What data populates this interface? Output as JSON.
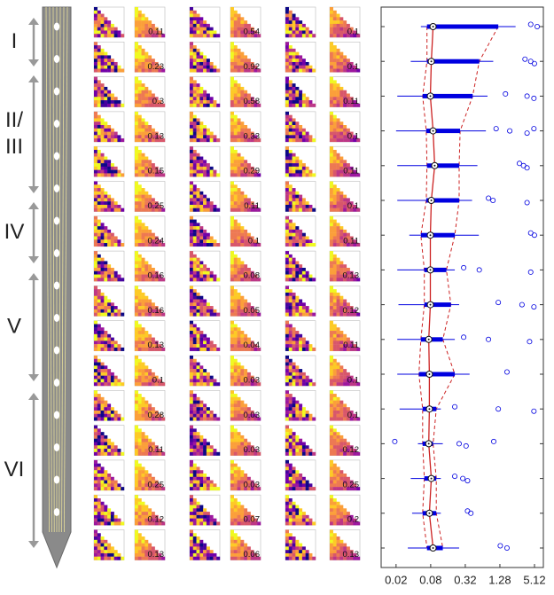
{
  "layers": [
    {
      "lines": [
        "I"
      ]
    },
    {
      "lines": [
        "II/",
        "III"
      ]
    },
    {
      "lines": [
        "IV"
      ]
    },
    {
      "lines": [
        "V"
      ]
    },
    {
      "lines": [
        "VI"
      ]
    }
  ],
  "matrix_values": [
    [
      "0.11",
      "0.23",
      "0.3",
      "0.13",
      "0.15",
      "0.25",
      "0.24",
      "0.16",
      "0.16",
      "0.13",
      "0.1",
      "0.28",
      "0.11",
      "0.25",
      "0.12",
      "0.13"
    ],
    [
      "0.54",
      "0.92",
      "0.58",
      "0.33",
      "0.29",
      "0.11",
      "0.1",
      "0.08",
      "0.05",
      "0.04",
      "0.03",
      "0.03",
      "0.03",
      "0.03",
      "0.07",
      "0.06"
    ],
    [
      "0.1",
      "0.1",
      "0.11",
      "0.1",
      "0.11",
      "0.1",
      "0.11",
      "0.13",
      "0.12",
      "0.11",
      "0.1",
      "0.1",
      "0.12",
      "0.25",
      "0.2",
      "0.13"
    ]
  ],
  "chart_data": {
    "type": "box",
    "box_color": "#0000e0",
    "line_color": "#cc2222",
    "x_log": true,
    "xlim": [
      0.011,
      7.3
    ],
    "xticks": [
      0.02,
      0.08,
      0.32,
      1.28,
      5.12
    ],
    "boxes": [
      {
        "whislo": 0.054,
        "q1": 0.069,
        "med": 0.088,
        "q3": 1.2,
        "whishi": 2.4,
        "fliers": [
          4.4,
          5.7
        ]
      },
      {
        "whislo": 0.036,
        "q1": 0.069,
        "med": 0.082,
        "q3": 0.56,
        "whishi": 0.98,
        "fliers": [
          3.5,
          4.4,
          5.1
        ]
      },
      {
        "whislo": 0.021,
        "q1": 0.058,
        "med": 0.079,
        "q3": 0.43,
        "whishi": 0.78,
        "fliers": [
          1.6,
          3.8,
          5.0
        ]
      },
      {
        "whislo": 0.02,
        "q1": 0.067,
        "med": 0.088,
        "q3": 0.26,
        "whishi": 0.73,
        "fliers": [
          1.1,
          1.9,
          3.8,
          5.0
        ]
      },
      {
        "whislo": 0.021,
        "q1": 0.069,
        "med": 0.094,
        "q3": 0.25,
        "whishi": 0.52,
        "fliers": [
          2.8,
          3.3,
          3.8
        ]
      },
      {
        "whislo": 0.021,
        "q1": 0.067,
        "med": 0.082,
        "q3": 0.25,
        "whishi": 0.42,
        "fliers": [
          0.81,
          0.97,
          3.8
        ]
      },
      {
        "whislo": 0.034,
        "q1": 0.054,
        "med": 0.079,
        "q3": 0.21,
        "whishi": 0.55,
        "fliers": [
          4.4,
          5.1
        ]
      },
      {
        "whislo": 0.021,
        "q1": 0.062,
        "med": 0.079,
        "q3": 0.15,
        "whishi": 0.21,
        "fliers": [
          0.3,
          0.56,
          4.4
        ]
      },
      {
        "whislo": 0.022,
        "q1": 0.062,
        "med": 0.079,
        "q3": 0.18,
        "whishi": 0.25,
        "fliers": [
          1.2,
          3.1,
          5.0
        ]
      },
      {
        "whislo": 0.021,
        "q1": 0.054,
        "med": 0.074,
        "q3": 0.13,
        "whishi": 0.21,
        "fliers": [
          0.3,
          0.81,
          4.2
        ]
      },
      {
        "whislo": 0.021,
        "q1": 0.05,
        "med": 0.076,
        "q3": 0.21,
        "whishi": 0.38,
        "fliers": [
          1.7
        ]
      },
      {
        "whislo": 0.023,
        "q1": 0.058,
        "med": 0.076,
        "q3": 0.1,
        "whishi": 0.12,
        "fliers": [
          0.21,
          1.2,
          5.0
        ]
      },
      {
        "whislo": 0.048,
        "q1": 0.058,
        "med": 0.074,
        "q3": 0.088,
        "whishi": 0.13,
        "fliers": [
          0.019,
          0.25,
          0.33,
          1.0
        ]
      },
      {
        "whislo": 0.036,
        "q1": 0.062,
        "med": 0.082,
        "q3": 0.1,
        "whishi": 0.12,
        "fliers": [
          0.21,
          0.29,
          0.35
        ]
      },
      {
        "whislo": 0.038,
        "q1": 0.058,
        "med": 0.076,
        "q3": 0.1,
        "whishi": 0.12,
        "fliers": [
          0.35,
          0.4
        ]
      },
      {
        "whislo": 0.032,
        "q1": 0.069,
        "med": 0.088,
        "q3": 0.13,
        "whishi": 0.25,
        "fliers": [
          1.3,
          1.7
        ]
      }
    ]
  }
}
